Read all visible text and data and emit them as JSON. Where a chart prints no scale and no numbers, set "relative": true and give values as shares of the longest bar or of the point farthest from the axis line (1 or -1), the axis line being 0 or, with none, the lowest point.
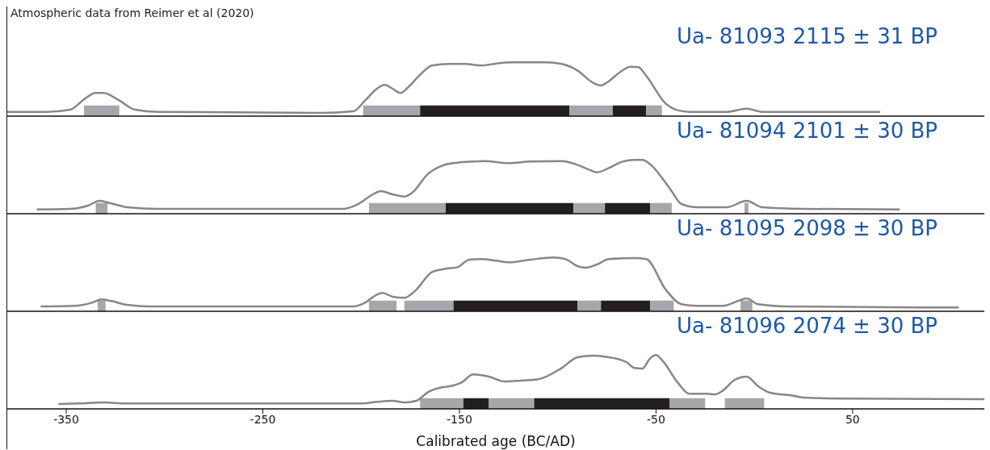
{
  "chart_data": [
    {
      "type": "line",
      "relative": true,
      "title": "Ua- 81093 2115 ± 31 BP",
      "annotations": [
        "Atmospheric data from Reimer et al (2020)"
      ],
      "tick_labels": false,
      "xlim": [
        -380,
        117
      ],
      "xticks": [
        -350,
        -250,
        -150,
        -50,
        50
      ],
      "series": [
        {
          "color": "#87878a",
          "x": [
            -380,
            -360,
            -348,
            -341,
            -335,
            -331,
            -323,
            -315,
            -303,
            -221,
            -204,
            -198,
            -192,
            -188,
            -184,
            -180,
            -176,
            -170,
            -164,
            -155,
            -147,
            -139,
            -131,
            -123,
            -106,
            -98,
            -90,
            -82,
            -78,
            -74,
            -69,
            -63,
            -59,
            -55,
            -45,
            -39,
            -33,
            -14,
            -4,
            4,
            25,
            64
          ],
          "values": [
            0.08,
            0.08,
            0.12,
            0.31,
            0.43,
            0.43,
            0.29,
            0.12,
            0.08,
            0.06,
            0.09,
            0.29,
            0.51,
            0.58,
            0.51,
            0.43,
            0.54,
            0.77,
            0.94,
            0.97,
            0.97,
            0.94,
            0.98,
            1,
            1,
            0.97,
            0.85,
            0.62,
            0.57,
            0.65,
            0.8,
            0.92,
            0.91,
            0.75,
            0.23,
            0.11,
            0.08,
            0.08,
            0.14,
            0.08,
            0.08,
            0.08
          ]
        }
      ],
      "bands": [
        {
          "axis": "x",
          "from": -341,
          "to": -323,
          "color": "#a6a7aa"
        },
        {
          "axis": "x",
          "from": -199,
          "to": -170,
          "color": "#a6a7aa"
        },
        {
          "axis": "x",
          "from": -170,
          "to": -94,
          "color": "#231f20"
        },
        {
          "axis": "x",
          "from": -94,
          "to": -72,
          "color": "#a6a7aa"
        },
        {
          "axis": "x",
          "from": -72,
          "to": -55,
          "color": "#231f20"
        },
        {
          "axis": "x",
          "from": -55,
          "to": -47,
          "color": "#a6a7aa"
        }
      ]
    },
    {
      "type": "line",
      "relative": true,
      "title": "Ua- 81094 2101 ± 30 BP",
      "tick_labels": false,
      "xlim": [
        -380,
        117
      ],
      "xticks": [
        -350,
        -250,
        -150,
        -50,
        50
      ],
      "series": [
        {
          "color": "#87878a",
          "x": [
            -365,
            -348,
            -339,
            -333,
            -329,
            -319,
            -303,
            -209,
            -202,
            -194,
            -190,
            -184,
            -178,
            -174,
            -166,
            -159,
            -151,
            -143,
            -137,
            -129,
            -125,
            -114,
            -98,
            -90,
            -84,
            -80,
            -74,
            -67,
            -61,
            -57,
            -53,
            -43,
            -37,
            -29,
            -14,
            -4,
            4,
            25,
            74
          ],
          "values": [
            0.08,
            0.09,
            0.15,
            0.24,
            0.21,
            0.12,
            0.09,
            0.09,
            0.17,
            0.36,
            0.42,
            0.36,
            0.32,
            0.39,
            0.74,
            0.89,
            0.95,
            0.97,
            0.98,
            0.95,
            0.94,
            0.97,
            0.98,
            0.91,
            0.82,
            0.77,
            0.85,
            0.97,
            1,
            1,
            0.92,
            0.47,
            0.18,
            0.12,
            0.12,
            0.24,
            0.12,
            0.09,
            0.08
          ]
        }
      ],
      "bands": [
        {
          "axis": "x",
          "from": -335,
          "to": -329,
          "color": "#a6a7aa"
        },
        {
          "axis": "x",
          "from": -196,
          "to": -157,
          "color": "#a6a7aa"
        },
        {
          "axis": "x",
          "from": -157,
          "to": -92,
          "color": "#231f20"
        },
        {
          "axis": "x",
          "from": -92,
          "to": -76,
          "color": "#a6a7aa"
        },
        {
          "axis": "x",
          "from": -76,
          "to": -53,
          "color": "#231f20"
        },
        {
          "axis": "x",
          "from": -53,
          "to": -42,
          "color": "#a6a7aa"
        },
        {
          "axis": "x",
          "from": -5,
          "to": -3,
          "color": "#a6a7aa"
        }
      ]
    },
    {
      "type": "line",
      "relative": true,
      "title": "Ua- 81095 2098 ± 30 BP",
      "tick_labels": false,
      "xlim": [
        -380,
        117
      ],
      "xticks": [
        -350,
        -250,
        -150,
        -50,
        50
      ],
      "series": [
        {
          "color": "#87878a",
          "x": [
            -363,
            -346,
            -337,
            -332,
            -327,
            -319,
            -307,
            -204,
            -198,
            -192,
            -189,
            -184,
            -178,
            -172,
            -164,
            -157,
            -151,
            -145,
            -139,
            -131,
            -125,
            -114,
            -102,
            -96,
            -90,
            -86,
            -80,
            -74,
            -61,
            -55,
            -45,
            -37,
            -29,
            -16,
            -7,
            -4,
            2,
            17,
            104
          ],
          "values": [
            0.09,
            0.1,
            0.16,
            0.22,
            0.19,
            0.12,
            0.09,
            0.09,
            0.16,
            0.31,
            0.34,
            0.27,
            0.25,
            0.4,
            0.73,
            0.79,
            0.82,
            0.96,
            0.97,
            0.94,
            0.91,
            0.96,
            1,
            0.97,
            0.84,
            0.81,
            0.87,
            0.97,
            0.99,
            0.97,
            0.4,
            0.13,
            0.1,
            0.1,
            0.21,
            0.24,
            0.13,
            0.09,
            0.07
          ]
        }
      ],
      "bands": [
        {
          "axis": "x",
          "from": -334,
          "to": -330,
          "color": "#a6a7aa"
        },
        {
          "axis": "x",
          "from": -196,
          "to": -182,
          "color": "#a6a7aa"
        },
        {
          "axis": "x",
          "from": -178,
          "to": -153,
          "color": "#a6a7aa"
        },
        {
          "axis": "x",
          "from": -153,
          "to": -90,
          "color": "#231f20"
        },
        {
          "axis": "x",
          "from": -90,
          "to": -78,
          "color": "#a6a7aa"
        },
        {
          "axis": "x",
          "from": -78,
          "to": -53,
          "color": "#231f20"
        },
        {
          "axis": "x",
          "from": -53,
          "to": -41,
          "color": "#a6a7aa"
        },
        {
          "axis": "x",
          "from": -7,
          "to": -1,
          "color": "#a6a7aa"
        }
      ]
    },
    {
      "type": "line",
      "relative": true,
      "title": "Ua- 81096 2074 ± 30 BP",
      "xlabel": "Calibrated age (BC/AD)",
      "tick_labels": "x",
      "xlim": [
        -380,
        117
      ],
      "xticks": [
        -350,
        -250,
        -150,
        -50,
        50
      ],
      "series": [
        {
          "color": "#87878a",
          "x": [
            -354,
            -344,
            -331,
            -319,
            -200,
            -192,
            -184,
            -178,
            -172,
            -166,
            -159,
            -155,
            -149,
            -143,
            -135,
            -127,
            -121,
            -110,
            -98,
            -90,
            -82,
            -74,
            -65,
            -61,
            -57,
            -53,
            -50,
            -47,
            -39,
            -33,
            -24,
            -20,
            -16,
            -10,
            -4,
            2,
            8,
            19,
            25,
            49,
            117
          ],
          "values": [
            0.09,
            0.1,
            0.12,
            0.1,
            0.1,
            0.13,
            0.15,
            0.12,
            0.15,
            0.31,
            0.4,
            0.42,
            0.49,
            0.64,
            0.6,
            0.51,
            0.52,
            0.55,
            0.76,
            0.96,
            0.99,
            0.96,
            0.87,
            0.76,
            0.75,
            0.94,
            1,
            0.91,
            0.49,
            0.28,
            0.28,
            0.27,
            0.34,
            0.54,
            0.6,
            0.42,
            0.3,
            0.25,
            0.21,
            0.19,
            0.18
          ]
        }
      ],
      "bands": [
        {
          "axis": "x",
          "from": -170,
          "to": -148,
          "color": "#a6a7aa"
        },
        {
          "axis": "x",
          "from": -148,
          "to": -135,
          "color": "#231f20"
        },
        {
          "axis": "x",
          "from": -135,
          "to": -112,
          "color": "#a6a7aa"
        },
        {
          "axis": "x",
          "from": -112,
          "to": -43,
          "color": "#231f20"
        },
        {
          "axis": "x",
          "from": -43,
          "to": -25,
          "color": "#a6a7aa"
        },
        {
          "axis": "x",
          "from": -15,
          "to": 5,
          "color": "#a6a7aa"
        }
      ]
    }
  ]
}
